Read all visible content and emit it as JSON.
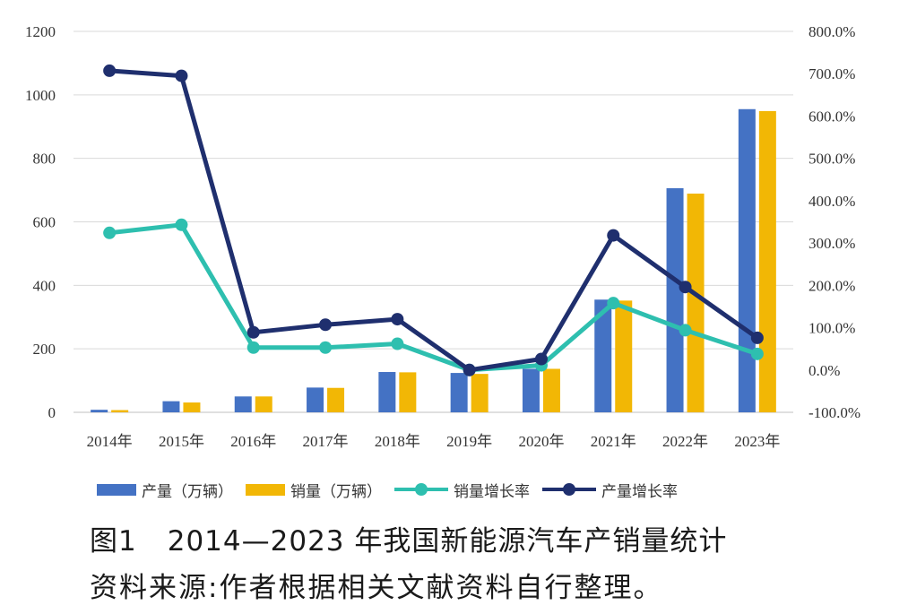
{
  "chart_data": {
    "type": "bar",
    "categories": [
      "2014年",
      "2015年",
      "2016年",
      "2017年",
      "2018年",
      "2019年",
      "2020年",
      "2021年",
      "2022年",
      "2023年"
    ],
    "series": [
      {
        "name": "产量（万辆）",
        "kind": "bar",
        "axis": "left",
        "color": "#4472C4",
        "values": [
          8,
          35,
          50,
          78,
          127,
          124,
          137,
          355,
          706,
          955
        ]
      },
      {
        "name": "销量（万辆）",
        "kind": "bar",
        "axis": "left",
        "color": "#F2B705",
        "values": [
          7,
          31,
          50,
          77,
          126,
          121,
          137,
          352,
          689,
          949
        ]
      },
      {
        "name": "销量增长率",
        "kind": "line",
        "axis": "right",
        "color": "#2EBFAF",
        "values": [
          324,
          343,
          53,
          53,
          62,
          0,
          11,
          158,
          94,
          38
        ]
      },
      {
        "name": "产量增长率",
        "kind": "line",
        "axis": "right",
        "color": "#1F2F6E",
        "values": [
          707,
          695,
          89,
          107,
          120,
          0,
          26,
          318,
          196,
          76
        ]
      }
    ],
    "left_axis": {
      "min": 0,
      "max": 1200,
      "step": 200,
      "ticks": [
        "0",
        "200",
        "400",
        "600",
        "800",
        "1000",
        "1200"
      ]
    },
    "right_axis": {
      "min": -100,
      "max": 800,
      "step": 100,
      "unit": "%",
      "ticks": [
        "-100.0%",
        "0.0%",
        "100.0%",
        "200.0%",
        "300.0%",
        "400.0%",
        "500.0%",
        "600.0%",
        "700.0%",
        "800.0%"
      ]
    },
    "grid": true,
    "legend_position": "bottom-left"
  },
  "legend": [
    {
      "label": "产量（万辆）",
      "type": "bar",
      "color": "#4472C4"
    },
    {
      "label": "销量（万辆）",
      "type": "bar",
      "color": "#F2B705"
    },
    {
      "label": "销量增长率",
      "type": "line",
      "color": "#2EBFAF"
    },
    {
      "label": "产量增长率",
      "type": "line",
      "color": "#1F2F6E"
    }
  ],
  "caption": {
    "figure_number": "图1",
    "title": "2014—2023 年我国新能源汽车产销量统计",
    "source": "资料来源:作者根据相关文献资料自行整理。"
  }
}
